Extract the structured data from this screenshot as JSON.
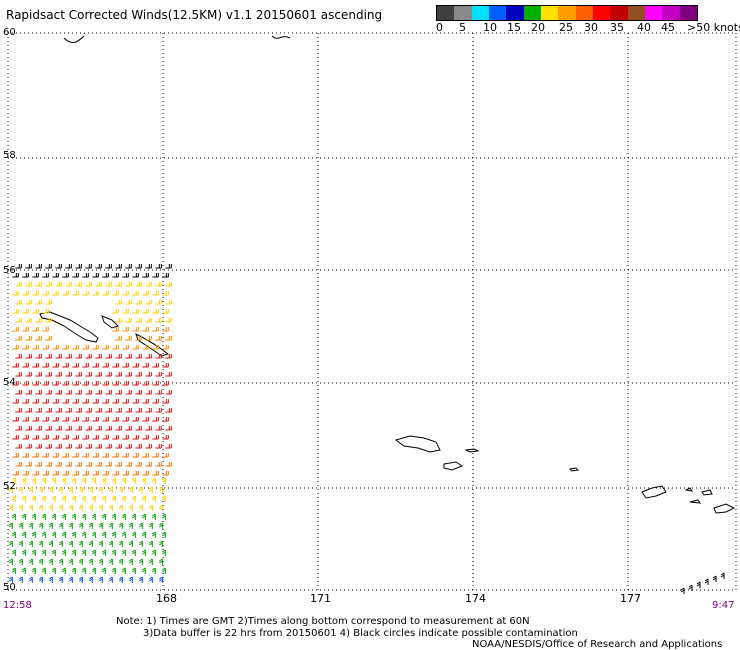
{
  "title": "Rapidsact Corrected Winds(12.5KM) v1.1 20150601 ascending",
  "legend": {
    "colors": [
      "#404040",
      "#888888",
      "#00e0ff",
      "#0060ff",
      "#0000c0",
      "#00b000",
      "#ffe000",
      "#ffa000",
      "#ff6000",
      "#ff0000",
      "#c00000",
      "#905020",
      "#ff00ff",
      "#c000c0",
      "#800080"
    ],
    "labels": [
      "0",
      "5",
      "10",
      "15",
      "20",
      "25",
      "30",
      "35",
      "40",
      "45",
      ">50 knots"
    ]
  },
  "lat_labels": [
    "60",
    "58",
    "56",
    "54",
    "52",
    "50"
  ],
  "lon_labels": [
    "168",
    "171",
    "174",
    "177"
  ],
  "time_left": "12:58",
  "time_right": "9:47",
  "notes": {
    "line1": "Note: 1) Times are GMT 2)Times along bottom correspond to measurement at 60N",
    "line2": "3)Data buffer is 22 hrs from 20150601 4) Black circles indicate possible contamination",
    "credit": "NOAA/NESDIS/Office of Research and Applications"
  }
}
